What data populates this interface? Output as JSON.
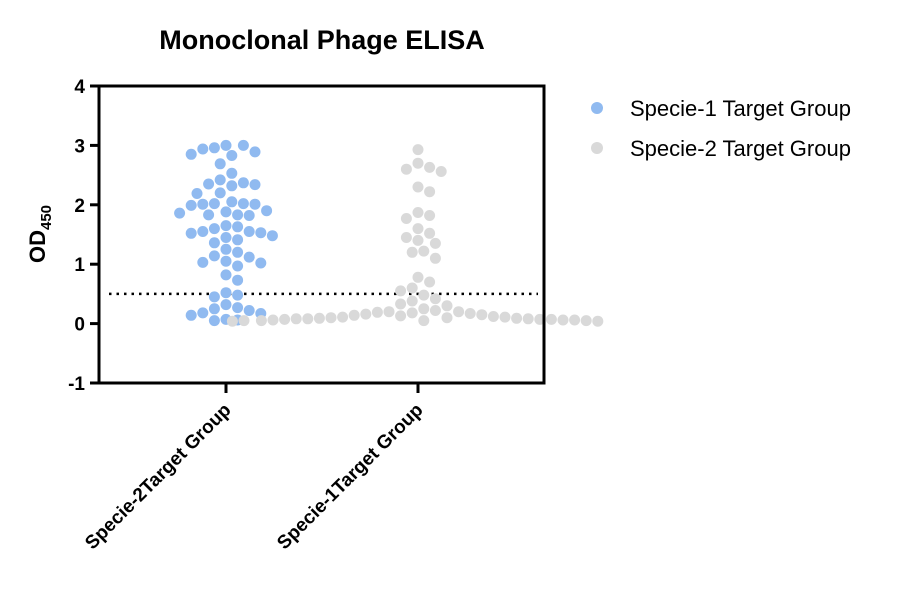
{
  "chart_data": {
    "type": "scatter",
    "title": "Monoclonal Phage ELISA",
    "ylabel": "OD",
    "ylabel_subscript": "450",
    "xlabel": "",
    "ylim": [
      -1,
      4
    ],
    "yticks": [
      -1,
      0,
      1,
      2,
      3,
      4
    ],
    "categories": [
      "Specie-2Target Group",
      "Specie-1Target Group"
    ],
    "reference_line": {
      "y": 0.5,
      "style": "dotted"
    },
    "legend_position": "right",
    "grid": false,
    "series": [
      {
        "name": "Specie-1 Target Group",
        "color": "#90BAF0",
        "category_index": 0,
        "values": [
          3.0,
          3.0,
          2.96,
          2.94,
          2.89,
          2.85,
          2.83,
          2.69,
          2.53,
          2.42,
          2.37,
          2.35,
          2.34,
          2.32,
          2.2,
          2.19,
          2.05,
          2.02,
          2.02,
          2.01,
          2.01,
          1.99,
          1.9,
          1.88,
          1.86,
          1.83,
          1.83,
          1.82,
          1.65,
          1.63,
          1.6,
          1.55,
          1.55,
          1.53,
          1.52,
          1.48,
          1.45,
          1.41,
          1.36,
          1.25,
          1.2,
          1.14,
          1.12,
          1.05,
          1.03,
          1.02,
          0.97,
          0.82,
          0.73,
          0.52,
          0.48,
          0.45,
          0.32,
          0.27,
          0.25,
          0.22,
          0.18,
          0.17,
          0.14,
          0.07,
          0.06,
          0.05
        ]
      },
      {
        "name": "Specie-2 Target Group",
        "color": "#D9D9D9",
        "category_index": 1,
        "values": [
          2.93,
          2.7,
          2.63,
          2.6,
          2.56,
          2.3,
          2.22,
          1.87,
          1.82,
          1.77,
          1.6,
          1.52,
          1.45,
          1.4,
          1.35,
          1.22,
          1.2,
          1.1,
          0.78,
          0.7,
          0.6,
          0.55,
          0.48,
          0.42,
          0.38,
          0.33,
          0.3,
          0.25,
          0.22,
          0.2,
          0.2,
          0.19,
          0.18,
          0.17,
          0.16,
          0.15,
          0.14,
          0.13,
          0.12,
          0.11,
          0.11,
          0.1,
          0.1,
          0.09,
          0.09,
          0.08,
          0.08,
          0.08,
          0.07,
          0.07,
          0.07,
          0.06,
          0.06,
          0.06,
          0.05,
          0.05,
          0.05,
          0.05,
          0.04,
          0.04
        ]
      }
    ]
  }
}
